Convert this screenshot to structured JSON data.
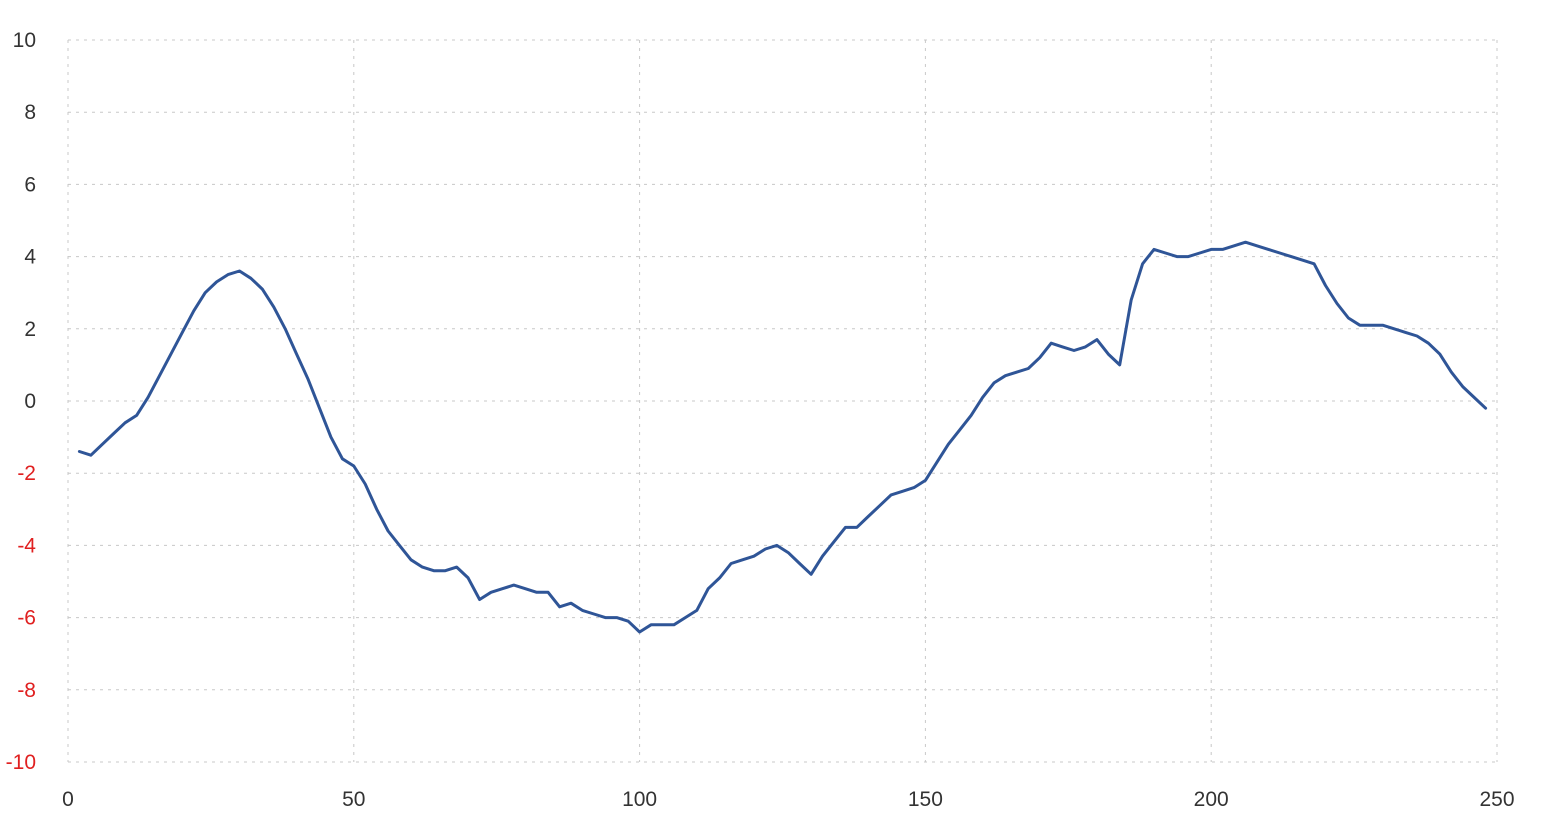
{
  "chart_data": {
    "type": "line",
    "title": "",
    "xlabel": "",
    "ylabel": "",
    "xlim": [
      0,
      250
    ],
    "ylim": [
      -10,
      10
    ],
    "x_ticks": [
      0,
      50,
      100,
      150,
      200,
      250
    ],
    "y_ticks": [
      10,
      8,
      6,
      4,
      2,
      0,
      -2,
      -4,
      -6,
      -8,
      -10
    ],
    "grid": true,
    "legend": "none",
    "colors": {
      "line": "#2f5597",
      "positive_tick": "#333333",
      "negative_tick": "#e02020",
      "grid": "#c8c8c8"
    },
    "series": [
      {
        "x": [
          2,
          4,
          6,
          8,
          10,
          12,
          14,
          16,
          18,
          20,
          22,
          24,
          26,
          28,
          30,
          32,
          34,
          36,
          38,
          40,
          42,
          44,
          46,
          48,
          50,
          52,
          54,
          56,
          58,
          60,
          62,
          64,
          66,
          68,
          70,
          72,
          74,
          76,
          78,
          80,
          82,
          84,
          86,
          88,
          90,
          92,
          94,
          96,
          98,
          100,
          102,
          104,
          106,
          108,
          110,
          112,
          114,
          116,
          118,
          120,
          122,
          124,
          126,
          128,
          130,
          132,
          134,
          136,
          138,
          140,
          142,
          144,
          146,
          148,
          150,
          152,
          154,
          156,
          158,
          160,
          162,
          164,
          166,
          168,
          170,
          172,
          174,
          176,
          178,
          180,
          182,
          184,
          186,
          188,
          190,
          192,
          194,
          196,
          198,
          200,
          202,
          204,
          206,
          208,
          210,
          212,
          214,
          216,
          218,
          220,
          222,
          224,
          226,
          228,
          230,
          232,
          234,
          236,
          238,
          240,
          242,
          244,
          246,
          248
        ],
        "y": [
          -1.4,
          -1.5,
          -1.2,
          -0.9,
          -0.6,
          -0.4,
          0.1,
          0.7,
          1.3,
          1.9,
          2.5,
          3.0,
          3.3,
          3.5,
          3.6,
          3.4,
          3.1,
          2.6,
          2.0,
          1.3,
          0.6,
          -0.2,
          -1.0,
          -1.6,
          -1.8,
          -2.3,
          -3.0,
          -3.6,
          -4.0,
          -4.4,
          -4.6,
          -4.7,
          -4.7,
          -4.6,
          -4.9,
          -5.5,
          -5.3,
          -5.2,
          -5.1,
          -5.2,
          -5.3,
          -5.3,
          -5.7,
          -5.6,
          -5.8,
          -5.9,
          -6.0,
          -6.0,
          -6.1,
          -6.4,
          -6.2,
          -6.2,
          -6.2,
          -6.0,
          -5.8,
          -5.2,
          -4.9,
          -4.5,
          -4.4,
          -4.3,
          -4.1,
          -4.0,
          -4.2,
          -4.5,
          -4.8,
          -4.3,
          -3.9,
          -3.5,
          -3.5,
          -3.2,
          -2.9,
          -2.6,
          -2.5,
          -2.4,
          -2.2,
          -1.7,
          -1.2,
          -0.8,
          -0.4,
          0.1,
          0.5,
          0.7,
          0.8,
          0.9,
          1.2,
          1.6,
          1.5,
          1.4,
          1.5,
          1.7,
          1.3,
          1.0,
          2.8,
          3.8,
          4.2,
          4.1,
          4.0,
          4.0,
          4.1,
          4.2,
          4.2,
          4.3,
          4.4,
          4.3,
          4.2,
          4.1,
          4.0,
          3.9,
          3.8,
          3.2,
          2.7,
          2.3,
          2.1,
          2.1,
          2.1,
          2.0,
          1.9,
          1.8,
          1.6,
          1.3,
          0.8,
          0.4,
          0.1,
          -0.2
        ]
      }
    ]
  }
}
